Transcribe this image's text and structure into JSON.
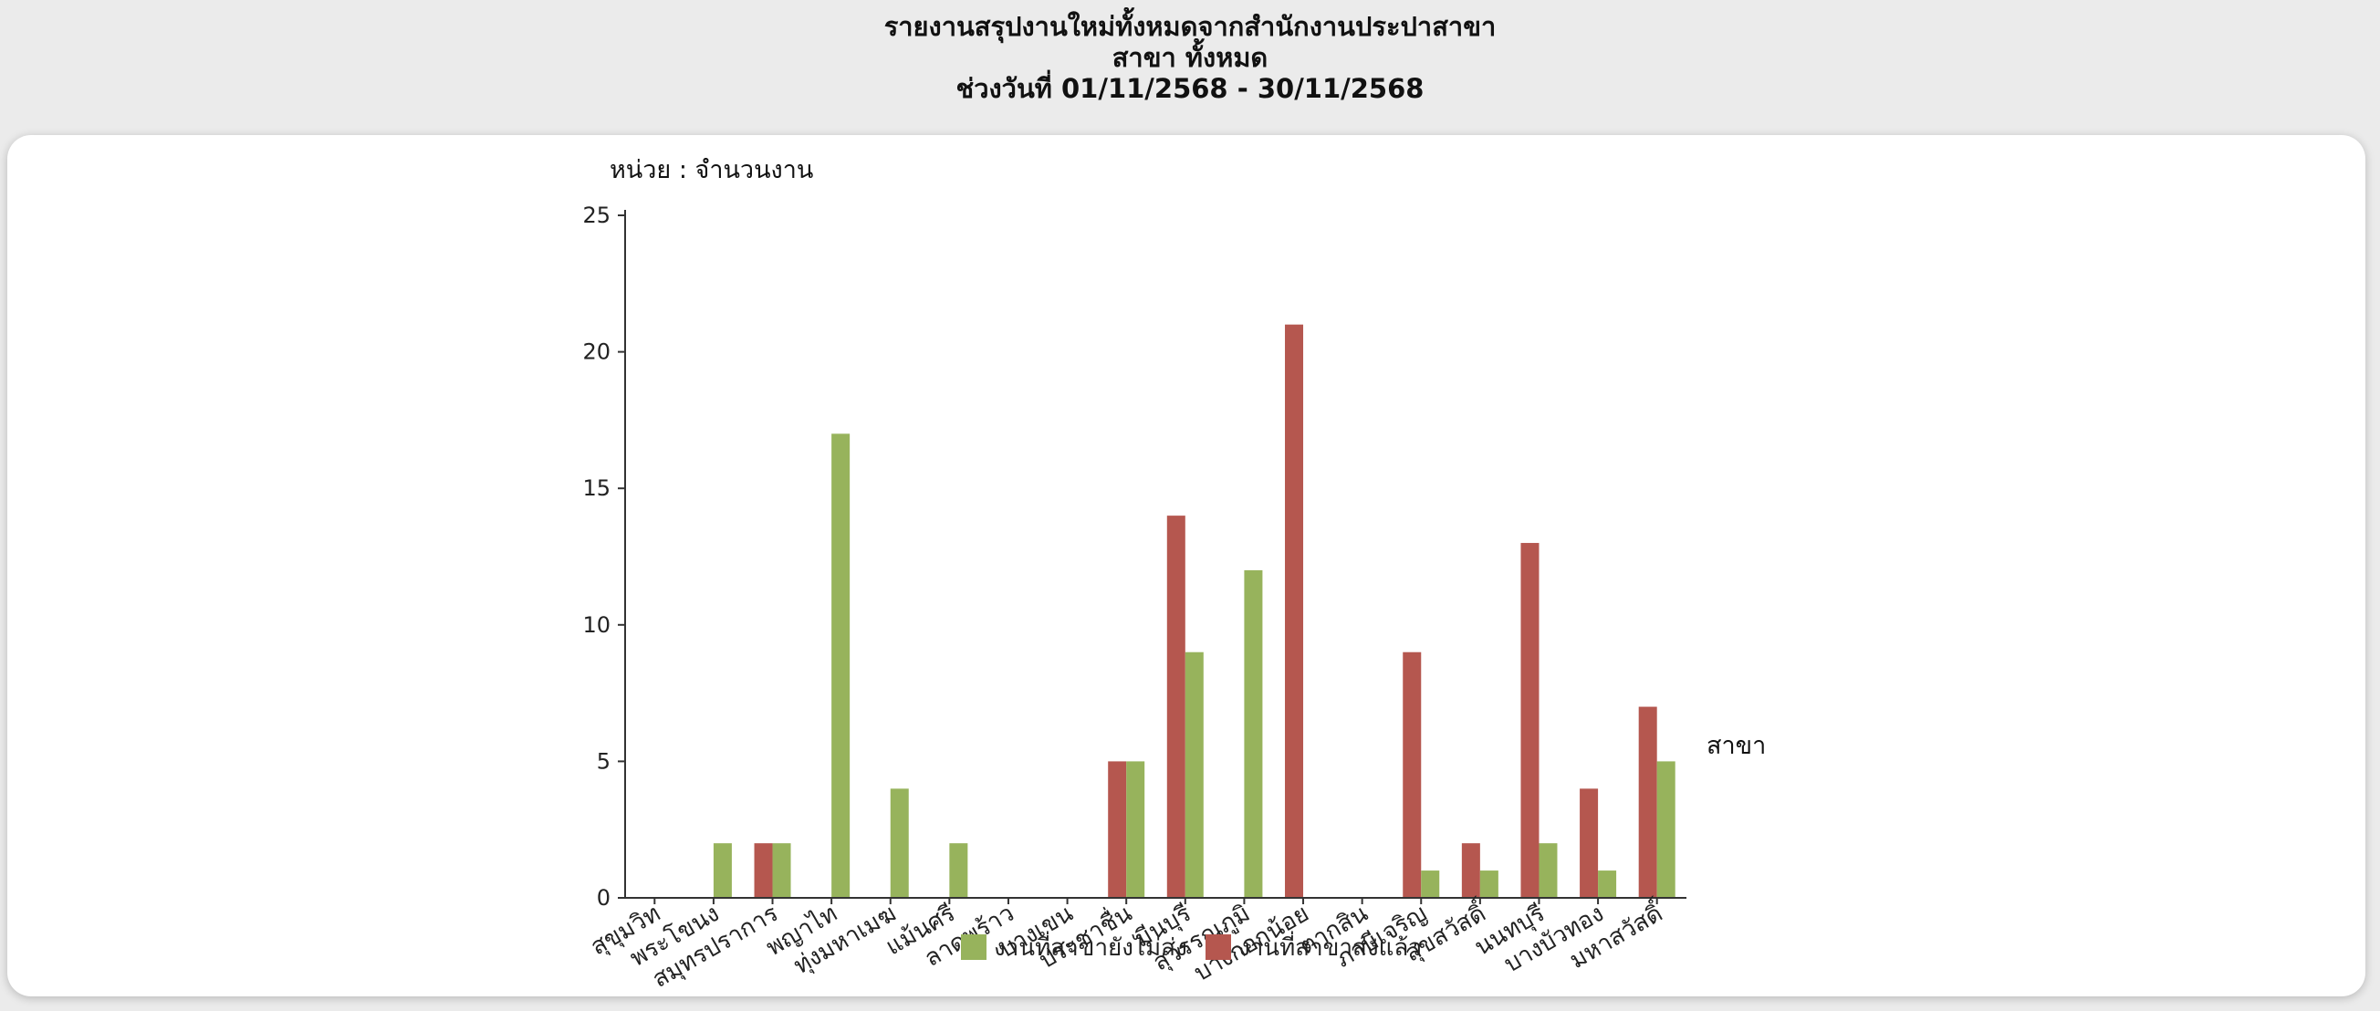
{
  "header": {
    "line1": "รายงานสรุปงานใหม่ทั้งหมดจากสำนักงานประปาสาขา",
    "line2": "สาขา ทั้งหมด",
    "line3": "ช่วงวันที่ 01/11/2568 - 30/11/2568"
  },
  "chart_data": {
    "type": "bar",
    "ylabel": "หน่วย : จำนวนงาน",
    "xlabel": "สาขา",
    "ylim": [
      0,
      25
    ],
    "yticks": [
      0,
      5,
      10,
      15,
      20,
      25
    ],
    "categories": [
      "สุขุมวิท",
      "พระโขนง",
      "สมุทรปราการ",
      "พญาไท",
      "ทุ่งมหาเมฆ",
      "แม้นศรี",
      "ลาดพร้าว",
      "บางเขน",
      "ประชาชื่น",
      "มีนบุรี",
      "สุวรรณภูมิ",
      "บางกอกน้อย",
      "ตากสิน",
      "ภาษีเจริญ",
      "สุขสวัสดิ์",
      "นนทบุรี",
      "บางบัวทอง",
      "มหาสวัสดิ์"
    ],
    "series": [
      {
        "name": "งานที่สาขาส่งแล้ว",
        "color": "#b5574f",
        "values": [
          0,
          0,
          2,
          0,
          0,
          0,
          0,
          0,
          5,
          14,
          0,
          21,
          0,
          9,
          2,
          13,
          4,
          7
        ]
      },
      {
        "name": "งานที่สาขายังไม่ส่ง",
        "color": "#97b35c",
        "values": [
          0,
          2,
          2,
          17,
          4,
          2,
          0,
          0,
          5,
          9,
          12,
          0,
          0,
          1,
          1,
          2,
          1,
          5
        ]
      }
    ],
    "legend_position": "bottom",
    "grid": false
  }
}
